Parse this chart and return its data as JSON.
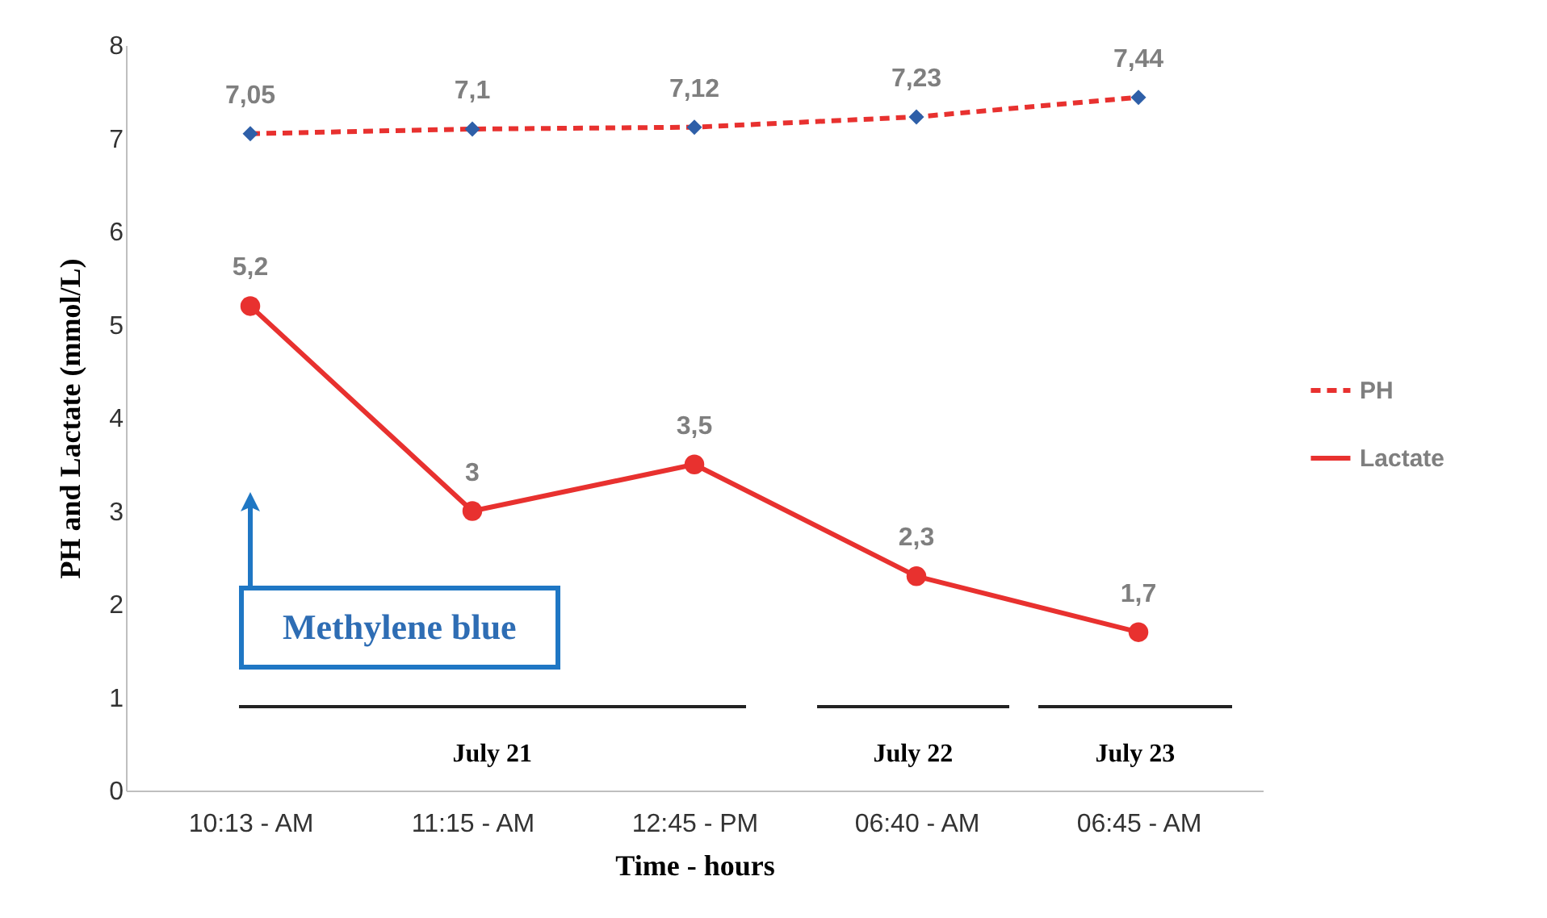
{
  "chart_data": {
    "type": "line",
    "xlabel": "Time - hours",
    "ylabel": "PH and Lactate (mmol/L)",
    "categories": [
      "10:13 - AM",
      "11:15 - AM",
      "12:45 - PM",
      "06:40 - AM",
      "06:45 - AM"
    ],
    "series": [
      {
        "name": "PH",
        "color": "#e8312f",
        "colors": [
          "#2e5fa8",
          "#2e5fa8",
          "#2e5fa8",
          "#2e5fa8",
          "#2e5fa8"
        ],
        "marker": "diamond",
        "line_style": "dashed",
        "values": [
          7.05,
          7.1,
          7.12,
          7.23,
          7.44
        ],
        "value_labels": [
          "7,05",
          "7,1",
          "7,12",
          "7,23",
          "7,44"
        ]
      },
      {
        "name": "Lactate",
        "color": "#e8312f",
        "colors": [
          "#e8312f",
          "#e8312f",
          "#e8312f",
          "#e8312f",
          "#e8312f"
        ],
        "marker": "circle",
        "line_style": "solid",
        "values": [
          5.2,
          3,
          3.5,
          2.3,
          1.7
        ],
        "value_labels": [
          "5,2",
          "3",
          "3,5",
          "2,3",
          "1,7"
        ]
      }
    ],
    "ylim": [
      0,
      8
    ],
    "yticks": [
      0,
      1,
      2,
      3,
      4,
      5,
      6,
      7,
      8
    ],
    "grid": false,
    "legend": "right",
    "annotations": [
      "Methylene blue",
      "July 21",
      "July 22",
      "July 23"
    ]
  }
}
